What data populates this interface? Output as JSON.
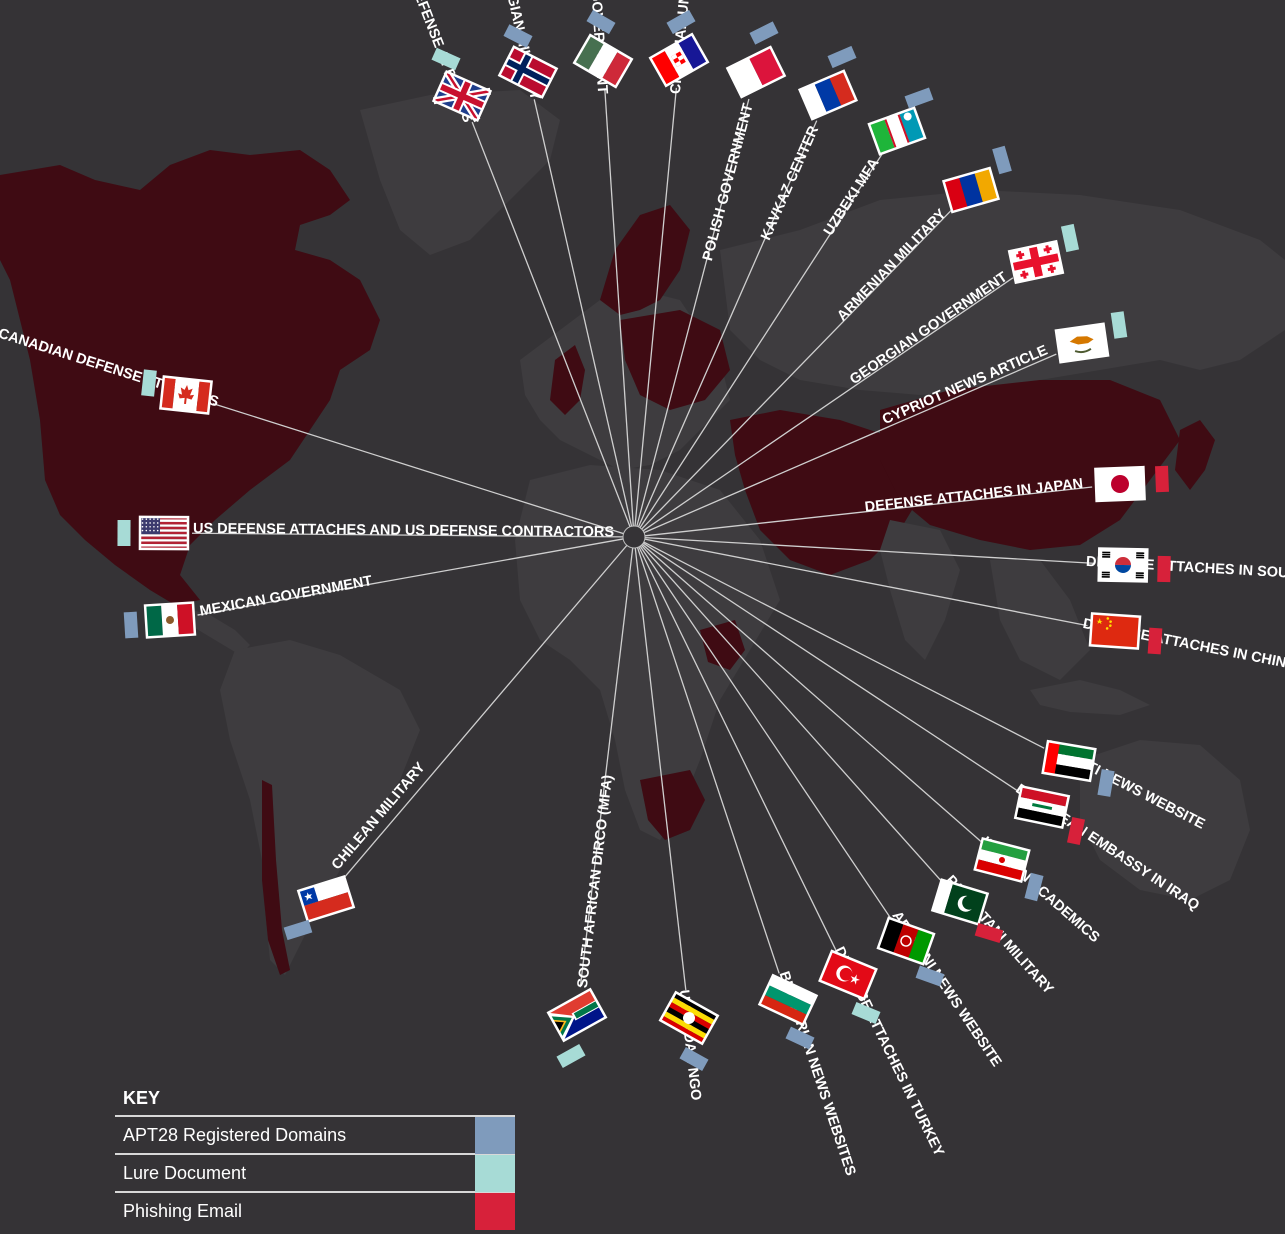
{
  "colors": {
    "background": "#353336",
    "land_target": "#3f0b13",
    "land_other": "#3e3c3f",
    "line": "#cfcfcf",
    "apt28_domains": "#7f9bbc",
    "lure_document": "#a7dbd6",
    "phishing_email": "#d7213a"
  },
  "key": {
    "title": "KEY",
    "items": [
      {
        "label": "APT28 Registered Domains",
        "type": "apt28_domains"
      },
      {
        "label": "Lure Document",
        "type": "lure_document"
      },
      {
        "label": "Phishing Email",
        "type": "phishing_email"
      }
    ]
  },
  "targets": [
    {
      "label": "UK DEFENSE ATTACHES",
      "flag": "uk-flag-icon",
      "markers": [
        "lure_document"
      ]
    },
    {
      "label": "NORWEGIAN MILITARY",
      "flag": "norway-flag-icon",
      "markers": [
        "apt28_domains"
      ]
    },
    {
      "label": "HUNGARIAN GOVERNMENT",
      "flag": "hungary-flag-icon",
      "markers": [
        "apt28_domains"
      ]
    },
    {
      "label": "CROATIAN UNIVERSITY",
      "flag": "croatia-flag-icon",
      "markers": [
        "apt28_domains"
      ]
    },
    {
      "label": "POLISH GOVERNMENT",
      "flag": "poland-flag-icon",
      "markers": [
        "apt28_domains"
      ]
    },
    {
      "label": "KAVKAZ CENTER",
      "flag": "russia-flag-icon",
      "markers": [
        "apt28_domains"
      ]
    },
    {
      "label": "UZBEKI MFA",
      "flag": "uzbekistan-flag-icon",
      "markers": [
        "apt28_domains"
      ]
    },
    {
      "label": "ARMENIAN MILITARY",
      "flag": "armenia-flag-icon",
      "markers": [
        "apt28_domains"
      ]
    },
    {
      "label": "GEORGIAN GOVERNMENT",
      "flag": "georgia-flag-icon",
      "markers": [
        "lure_document"
      ]
    },
    {
      "label": "CYPRIOT NEWS ARTICLE",
      "flag": "cyprus-flag-icon",
      "markers": [
        "lure_document"
      ]
    },
    {
      "label": "DEFENSE ATTACHES IN JAPAN",
      "flag": "japan-flag-icon",
      "markers": [
        "phishing_email"
      ]
    },
    {
      "label": "DEFENSE ATTACHES IN SOUTH KOREA",
      "flag": "south-korea-flag-icon",
      "markers": [
        "phishing_email"
      ]
    },
    {
      "label": "DEFENSE ATTACHES IN CHINA",
      "flag": "china-flag-icon",
      "markers": [
        "phishing_email"
      ]
    },
    {
      "label": "EMIRATI NEWS WEBSITE",
      "flag": "uae-flag-icon",
      "markers": [
        "apt28_domains"
      ]
    },
    {
      "label": "EUROPEAN EMBASSY IN IRAQ",
      "flag": "iraq-flag-icon",
      "markers": [
        "phishing_email"
      ]
    },
    {
      "label": "IRANIAN ACADEMICS",
      "flag": "iran-flag-icon",
      "markers": [
        "apt28_domains"
      ]
    },
    {
      "label": "PAKASTANI MILITARY",
      "flag": "pakistan-flag-icon",
      "markers": [
        "phishing_email"
      ]
    },
    {
      "label": "AFGHANI NEWS WEBSITE",
      "flag": "afghanistan-flag-icon",
      "markers": [
        "apt28_domains"
      ]
    },
    {
      "label": "DEFENSE ATTACHES IN TURKEY",
      "flag": "turkey-flag-icon",
      "markers": [
        "lure_document"
      ]
    },
    {
      "label": "BULGARIAN NEWS WEBSITES",
      "flag": "bulgaria-flag-icon",
      "markers": [
        "apt28_domains"
      ]
    },
    {
      "label": "UGANDAN NGO",
      "flag": "uganda-flag-icon",
      "markers": [
        "apt28_domains"
      ]
    },
    {
      "label": "SOUTH AFRICAN DIRCO (MFA)",
      "flag": "south-africa-flag-icon",
      "markers": [
        "lure_document"
      ]
    },
    {
      "label": "CHILEAN MILITARY",
      "flag": "chile-flag-icon",
      "markers": [
        "apt28_domains"
      ]
    },
    {
      "label": "MEXICAN GOVERNMENT",
      "flag": "mexico-flag-icon",
      "markers": [
        "apt28_domains"
      ]
    },
    {
      "label": "US DEFENSE ATTACHES AND US DEFENSE CONTRACTORS",
      "flag": "usa-flag-icon",
      "markers": [
        "lure_document"
      ]
    },
    {
      "label": "CANADIAN DEFENSE ATTACHES",
      "flag": "canada-flag-icon",
      "markers": [
        "lure_document"
      ]
    }
  ]
}
